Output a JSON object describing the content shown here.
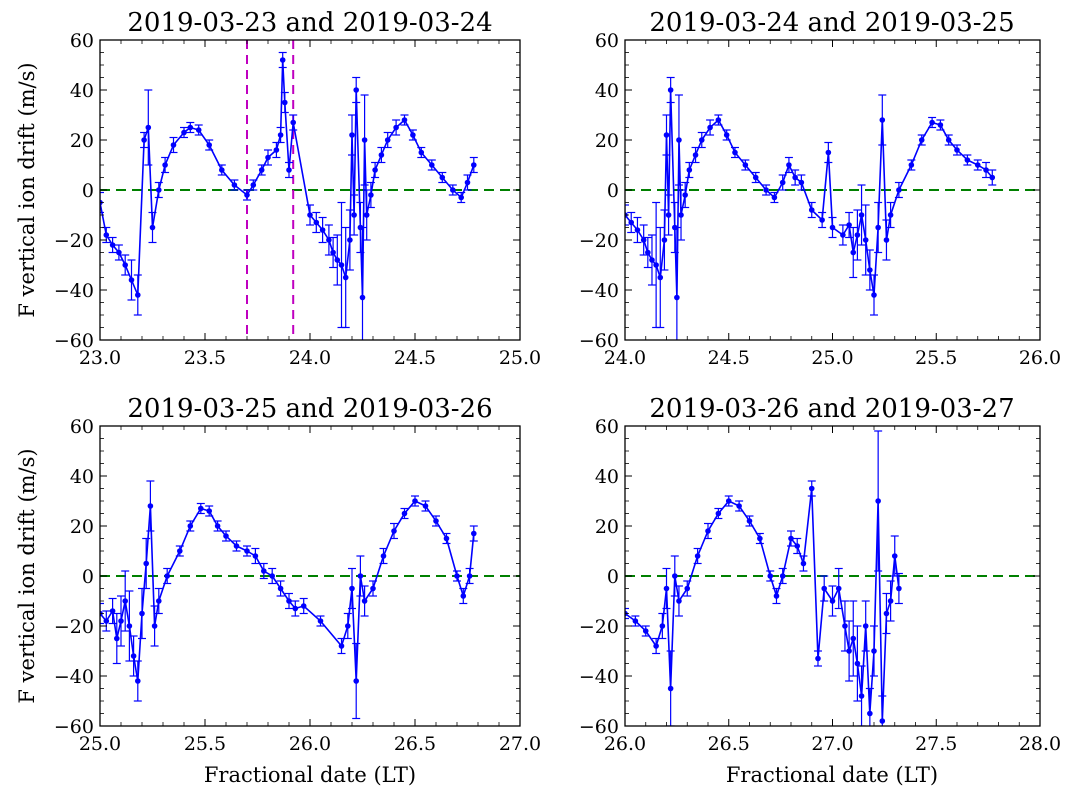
{
  "figure": {
    "ylabel": "F vertical ion drift (m/s)",
    "xlabel": "Fractional date (LT)",
    "colors": {
      "series": "#0000ff",
      "zero_line": "#008000",
      "marker_lines": "#bf00bf"
    }
  },
  "chart_data": [
    {
      "type": "line",
      "title": "2019-03-23 and 2019-03-24",
      "xlabel": "",
      "ylabel": "F vertical ion drift (m/s)",
      "xlim": [
        23.0,
        25.0
      ],
      "ylim": [
        -60,
        60
      ],
      "xticks": [
        "23.0",
        "23.5",
        "24.0",
        "24.5",
        "25.0"
      ],
      "yticks": [
        "60",
        "40",
        "20",
        "0",
        "−20",
        "−40",
        "−60"
      ],
      "vlines": [
        23.7,
        23.92
      ],
      "zero_line": 0,
      "x": [
        23.0,
        23.03,
        23.06,
        23.09,
        23.12,
        23.15,
        23.18,
        23.21,
        23.23,
        23.25,
        23.28,
        23.31,
        23.35,
        23.4,
        23.43,
        23.47,
        23.52,
        23.58,
        23.64,
        23.7,
        23.73,
        23.77,
        23.8,
        23.84,
        23.86,
        23.87,
        23.88,
        23.9,
        23.92,
        24.0,
        24.03,
        24.06,
        24.09,
        24.11,
        24.13,
        24.15,
        24.17,
        24.19,
        24.2,
        24.21,
        24.22,
        24.24,
        24.25,
        24.26,
        24.27,
        24.29,
        24.31,
        24.34,
        24.37,
        24.41,
        24.45,
        24.49,
        24.53,
        24.58,
        24.63,
        24.68,
        24.72,
        24.75,
        24.78
      ],
      "y": [
        -5,
        -18,
        -22,
        -25,
        -30,
        -36,
        -42,
        20,
        25,
        -15,
        0,
        10,
        18,
        23,
        25,
        24,
        18,
        8,
        2,
        -2,
        2,
        8,
        13,
        16,
        22,
        52,
        35,
        8,
        27,
        -10,
        -13,
        -16,
        -20,
        -25,
        -28,
        -30,
        -35,
        -20,
        22,
        -10,
        40,
        -15,
        -43,
        20,
        -10,
        -2,
        8,
        14,
        20,
        25,
        28,
        22,
        15,
        10,
        5,
        0,
        -3,
        3,
        10
      ],
      "err": [
        4,
        3,
        3,
        3,
        4,
        8,
        8,
        3,
        15,
        6,
        3,
        3,
        3,
        2,
        2,
        2,
        2,
        2,
        2,
        2,
        2,
        2,
        3,
        3,
        3,
        3,
        4,
        3,
        3,
        4,
        4,
        5,
        6,
        6,
        10,
        25,
        20,
        12,
        8,
        8,
        5,
        10,
        28,
        18,
        10,
        5,
        3,
        3,
        3,
        3,
        2,
        2,
        2,
        2,
        2,
        2,
        2,
        3,
        3
      ]
    },
    {
      "type": "line",
      "title": "2019-03-24 and 2019-03-25",
      "xlabel": "",
      "ylabel": "",
      "xlim": [
        24.0,
        26.0
      ],
      "ylim": [
        -60,
        60
      ],
      "xticks": [
        "24.0",
        "24.5",
        "25.0",
        "25.5",
        "26.0"
      ],
      "yticks": [
        "60",
        "40",
        "20",
        "0",
        "−20",
        "−40",
        "−60"
      ],
      "vlines": [],
      "zero_line": 0,
      "x": [
        24.0,
        24.03,
        24.06,
        24.09,
        24.11,
        24.13,
        24.15,
        24.17,
        24.19,
        24.2,
        24.21,
        24.22,
        24.24,
        24.25,
        24.26,
        24.27,
        24.29,
        24.31,
        24.34,
        24.37,
        24.41,
        24.45,
        24.49,
        24.53,
        24.58,
        24.63,
        24.68,
        24.72,
        24.76,
        24.79,
        24.82,
        24.85,
        24.9,
        24.95,
        24.98,
        25.0,
        25.05,
        25.08,
        25.1,
        25.12,
        25.14,
        25.16,
        25.18,
        25.2,
        25.22,
        25.24,
        25.26,
        25.28,
        25.32,
        25.38,
        25.43,
        25.48,
        25.52,
        25.56,
        25.6,
        25.65,
        25.7,
        25.74,
        25.77
      ],
      "y": [
        -10,
        -13,
        -16,
        -20,
        -25,
        -28,
        -30,
        -35,
        -20,
        22,
        -10,
        40,
        -15,
        -43,
        20,
        -10,
        -2,
        8,
        14,
        20,
        25,
        28,
        22,
        15,
        10,
        5,
        0,
        -3,
        3,
        10,
        5,
        3,
        -8,
        -12,
        15,
        -15,
        -18,
        -14,
        -25,
        -18,
        -10,
        -20,
        -32,
        -42,
        -15,
        28,
        -20,
        -10,
        0,
        10,
        20,
        27,
        26,
        20,
        16,
        12,
        10,
        8,
        5
      ],
      "err": [
        4,
        4,
        5,
        6,
        6,
        10,
        25,
        20,
        12,
        8,
        8,
        5,
        10,
        28,
        18,
        10,
        5,
        3,
        3,
        3,
        3,
        2,
        2,
        2,
        2,
        2,
        2,
        2,
        3,
        3,
        3,
        3,
        3,
        3,
        4,
        4,
        4,
        5,
        10,
        10,
        12,
        14,
        8,
        8,
        10,
        10,
        8,
        5,
        3,
        2,
        2,
        2,
        2,
        2,
        2,
        2,
        2,
        3,
        3
      ]
    },
    {
      "type": "line",
      "title": "2019-03-25 and 2019-03-26",
      "xlabel": "Fractional date (LT)",
      "ylabel": "F vertical ion drift (m/s)",
      "xlim": [
        25.0,
        27.0
      ],
      "ylim": [
        -60,
        60
      ],
      "xticks": [
        "25.0",
        "25.5",
        "26.0",
        "26.5",
        "27.0"
      ],
      "yticks": [
        "60",
        "40",
        "20",
        "0",
        "−20",
        "−40",
        "−60"
      ],
      "vlines": [],
      "zero_line": 0,
      "x": [
        25.0,
        25.03,
        25.06,
        25.08,
        25.1,
        25.12,
        25.14,
        25.16,
        25.18,
        25.2,
        25.22,
        25.24,
        25.26,
        25.28,
        25.32,
        25.38,
        25.43,
        25.48,
        25.52,
        25.56,
        25.6,
        25.65,
        25.7,
        25.74,
        25.78,
        25.82,
        25.86,
        25.9,
        25.93,
        25.97,
        26.05,
        26.15,
        26.18,
        26.2,
        26.22,
        26.24,
        26.26,
        26.3,
        26.35,
        26.4,
        26.45,
        26.5,
        26.55,
        26.6,
        26.65,
        26.7,
        26.73,
        26.76,
        26.78
      ],
      "y": [
        -15,
        -18,
        -14,
        -25,
        -18,
        -10,
        -20,
        -32,
        -42,
        -15,
        5,
        28,
        -20,
        -10,
        0,
        10,
        20,
        27,
        26,
        20,
        16,
        12,
        10,
        8,
        2,
        0,
        -5,
        -10,
        -13,
        -12,
        -18,
        -28,
        -20,
        -5,
        -42,
        0,
        -10,
        -5,
        8,
        18,
        25,
        30,
        28,
        22,
        15,
        0,
        -8,
        0,
        17
      ],
      "err": [
        4,
        4,
        5,
        10,
        10,
        12,
        14,
        8,
        8,
        10,
        10,
        10,
        8,
        5,
        3,
        2,
        2,
        2,
        2,
        2,
        2,
        2,
        2,
        3,
        3,
        3,
        3,
        3,
        3,
        3,
        2,
        3,
        5,
        8,
        15,
        8,
        6,
        3,
        3,
        3,
        2,
        2,
        2,
        2,
        2,
        2,
        3,
        3,
        3
      ]
    },
    {
      "type": "line",
      "title": "2019-03-26 and 2019-03-27",
      "xlabel": "Fractional date (LT)",
      "ylabel": "",
      "xlim": [
        26.0,
        28.0
      ],
      "ylim": [
        -60,
        60
      ],
      "xticks": [
        "26.0",
        "26.5",
        "27.0",
        "27.5",
        "28.0"
      ],
      "yticks": [
        "60",
        "40",
        "20",
        "0",
        "−20",
        "−40",
        "−60"
      ],
      "vlines": [],
      "zero_line": 0,
      "x": [
        26.0,
        26.05,
        26.1,
        26.15,
        26.18,
        26.2,
        26.22,
        26.24,
        26.26,
        26.3,
        26.35,
        26.4,
        26.45,
        26.5,
        26.55,
        26.6,
        26.65,
        26.7,
        26.73,
        26.76,
        26.8,
        26.83,
        26.86,
        26.9,
        26.93,
        26.96,
        27.0,
        27.03,
        27.06,
        27.08,
        27.1,
        27.12,
        27.14,
        27.16,
        27.18,
        27.2,
        27.22,
        27.24,
        27.26,
        27.28,
        27.3,
        27.32
      ],
      "y": [
        -15,
        -18,
        -22,
        -28,
        -20,
        -5,
        -45,
        0,
        -10,
        -5,
        8,
        18,
        25,
        30,
        28,
        22,
        15,
        0,
        -8,
        0,
        15,
        12,
        5,
        35,
        -33,
        -5,
        -10,
        -5,
        -20,
        -30,
        -25,
        -35,
        -48,
        -20,
        -55,
        -30,
        30,
        -58,
        -15,
        -10,
        8,
        -5
      ],
      "err": [
        2,
        2,
        2,
        3,
        5,
        8,
        15,
        8,
        6,
        3,
        3,
        3,
        2,
        2,
        2,
        2,
        2,
        2,
        3,
        3,
        3,
        3,
        3,
        3,
        3,
        5,
        6,
        8,
        10,
        12,
        15,
        15,
        12,
        10,
        10,
        10,
        28,
        10,
        8,
        8,
        8,
        6
      ]
    }
  ]
}
